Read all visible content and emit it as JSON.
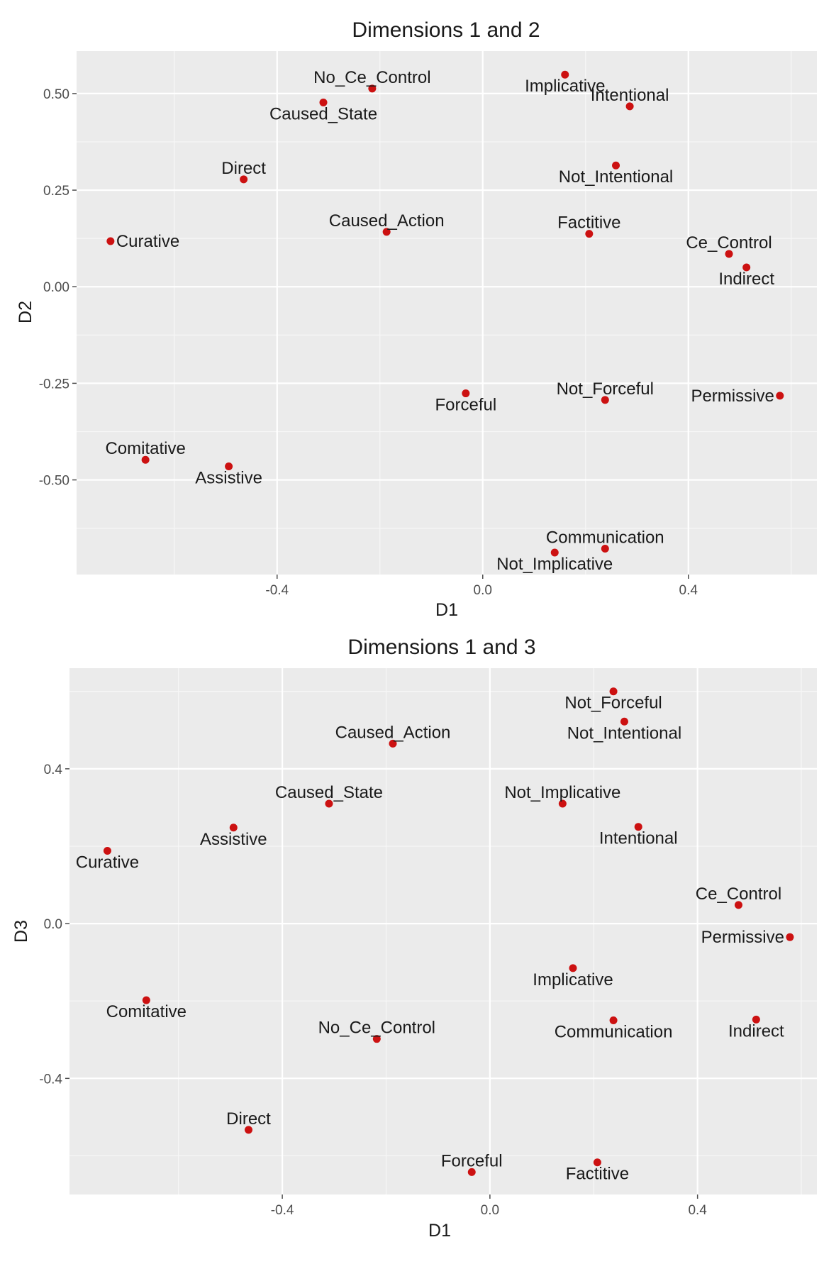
{
  "chart_data": [
    {
      "type": "scatter",
      "title": "Dimensions 1 and 2",
      "xlabel": "D1",
      "ylabel": "D2",
      "xlim": [
        -0.79,
        0.65
      ],
      "ylim": [
        -0.745,
        0.61
      ],
      "x_ticks": [
        -0.4,
        0.0,
        0.4
      ],
      "x_tick_labels": [
        "-0.4",
        "0.0",
        "0.4"
      ],
      "y_ticks": [
        0.5,
        0.25,
        0.0,
        -0.25,
        -0.5
      ],
      "y_tick_labels": [
        "0.50",
        "0.25",
        "0.00",
        "-0.25",
        "-0.50"
      ],
      "grid": true,
      "point_color": "#cc1111",
      "points": [
        {
          "label": "No_Ce_Control",
          "x": -0.215,
          "y": 0.513,
          "pos": "above"
        },
        {
          "label": "Implicative",
          "x": 0.16,
          "y": 0.549,
          "pos": "below"
        },
        {
          "label": "Intentional",
          "x": 0.286,
          "y": 0.467,
          "pos": "above"
        },
        {
          "label": "Caused_State",
          "x": -0.31,
          "y": 0.477,
          "pos": "below"
        },
        {
          "label": "Direct",
          "x": -0.465,
          "y": 0.278,
          "pos": "above"
        },
        {
          "label": "Not_Intentional",
          "x": 0.259,
          "y": 0.314,
          "pos": "below"
        },
        {
          "label": "Caused_Action",
          "x": -0.187,
          "y": 0.142,
          "pos": "above"
        },
        {
          "label": "Factitive",
          "x": 0.207,
          "y": 0.137,
          "pos": "above"
        },
        {
          "label": "Ce_Control",
          "x": 0.479,
          "y": 0.085,
          "pos": "above"
        },
        {
          "label": "Indirect",
          "x": 0.513,
          "y": 0.05,
          "pos": "below"
        },
        {
          "label": "Curative",
          "x": -0.724,
          "y": 0.118,
          "pos": "right"
        },
        {
          "label": "Forceful",
          "x": -0.033,
          "y": -0.276,
          "pos": "below"
        },
        {
          "label": "Not_Forceful",
          "x": 0.238,
          "y": -0.293,
          "pos": "above"
        },
        {
          "label": "Permissive",
          "x": 0.578,
          "y": -0.282,
          "pos": "left"
        },
        {
          "label": "Comitative",
          "x": -0.656,
          "y": -0.448,
          "pos": "above"
        },
        {
          "label": "Assistive",
          "x": -0.494,
          "y": -0.465,
          "pos": "below"
        },
        {
          "label": "Communication",
          "x": 0.238,
          "y": -0.678,
          "pos": "above"
        },
        {
          "label": "Not_Implicative",
          "x": 0.14,
          "y": -0.688,
          "pos": "below"
        }
      ]
    },
    {
      "type": "scatter",
      "title": "Dimensions 1 and 3",
      "xlabel": "D1",
      "ylabel": "D3",
      "xlim": [
        -0.81,
        0.63
      ],
      "ylim": [
        -0.7,
        0.66
      ],
      "x_ticks": [
        -0.4,
        0.0,
        0.4
      ],
      "x_tick_labels": [
        "-0.4",
        "0.0",
        "0.4"
      ],
      "y_ticks": [
        0.4,
        0.0,
        -0.4
      ],
      "y_tick_labels": [
        "0.4",
        "0.0",
        "-0.4"
      ],
      "grid": true,
      "point_color": "#cc1111",
      "points": [
        {
          "label": "Not_Forceful",
          "x": 0.238,
          "y": 0.6,
          "pos": "below"
        },
        {
          "label": "Not_Intentional",
          "x": 0.259,
          "y": 0.522,
          "pos": "below"
        },
        {
          "label": "Caused_Action",
          "x": -0.187,
          "y": 0.465,
          "pos": "above"
        },
        {
          "label": "Caused_State",
          "x": -0.31,
          "y": 0.31,
          "pos": "above"
        },
        {
          "label": "Not_Implicative",
          "x": 0.14,
          "y": 0.31,
          "pos": "above"
        },
        {
          "label": "Assistive",
          "x": -0.494,
          "y": 0.248,
          "pos": "below"
        },
        {
          "label": "Intentional",
          "x": 0.286,
          "y": 0.25,
          "pos": "below"
        },
        {
          "label": "Curative",
          "x": -0.737,
          "y": 0.188,
          "pos": "below"
        },
        {
          "label": "Ce_Control",
          "x": 0.479,
          "y": 0.048,
          "pos": "above"
        },
        {
          "label": "Permissive",
          "x": 0.578,
          "y": -0.035,
          "pos": "left"
        },
        {
          "label": "Implicative",
          "x": 0.16,
          "y": -0.115,
          "pos": "below"
        },
        {
          "label": "Comitative",
          "x": -0.662,
          "y": -0.198,
          "pos": "below"
        },
        {
          "label": "Communication",
          "x": 0.238,
          "y": -0.25,
          "pos": "below"
        },
        {
          "label": "Indirect",
          "x": 0.513,
          "y": -0.248,
          "pos": "below"
        },
        {
          "label": "No_Ce_Control",
          "x": -0.218,
          "y": -0.298,
          "pos": "above"
        },
        {
          "label": "Direct",
          "x": -0.465,
          "y": -0.533,
          "pos": "above"
        },
        {
          "label": "Factitive",
          "x": 0.207,
          "y": -0.617,
          "pos": "below"
        },
        {
          "label": "Forceful",
          "x": -0.035,
          "y": -0.642,
          "pos": "above"
        }
      ]
    }
  ]
}
